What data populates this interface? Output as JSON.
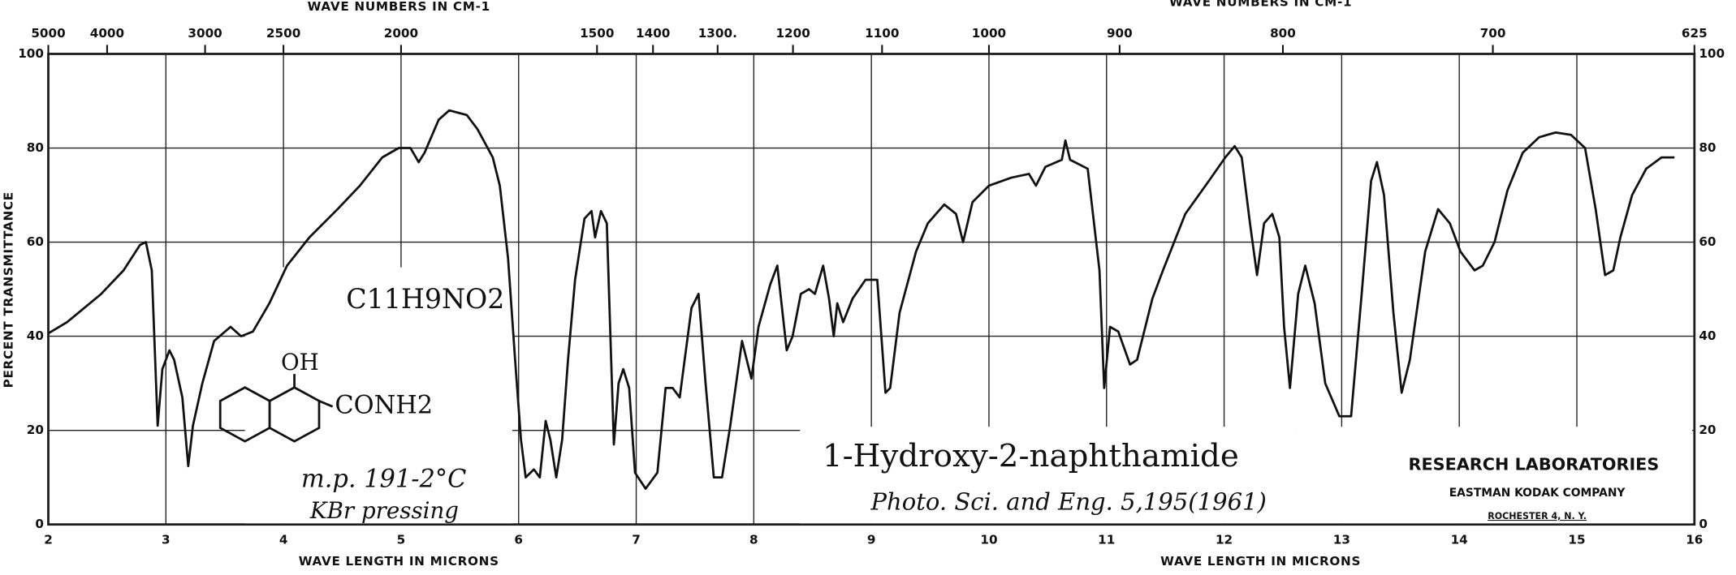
{
  "chart_data": {
    "type": "line",
    "x_label": "WAVE LENGTH IN MICRONS",
    "x2_label": "WAVE NUMBERS IN CM-1",
    "y_label": "PERCENT TRANSMITTANCE",
    "xlim": [
      2,
      16
    ],
    "xticks": [
      2,
      3,
      4,
      5,
      6,
      7,
      8,
      9,
      10,
      11,
      12,
      13,
      14,
      15,
      16
    ],
    "x2ticks": [
      5000,
      4000,
      3000,
      2500,
      2000,
      1500,
      1400,
      {
        "value": 1300,
        "label": "1300."
      },
      1200,
      1100,
      1000,
      900,
      800,
      700,
      625
    ],
    "ylim": [
      0,
      100
    ],
    "yticks": [
      0,
      20,
      40,
      60,
      80,
      100
    ],
    "grid": true,
    "color": "#111111",
    "x": [
      2.0,
      2.16,
      2.45,
      2.64,
      2.78,
      2.83,
      2.88,
      2.93,
      2.97,
      3.03,
      3.07,
      3.14,
      3.19,
      3.23,
      3.31,
      3.41,
      3.55,
      3.64,
      3.74,
      3.88,
      4.03,
      4.22,
      4.46,
      4.65,
      4.84,
      4.98,
      5.08,
      5.15,
      5.2,
      5.32,
      5.41,
      5.56,
      5.65,
      5.78,
      5.84,
      5.91,
      5.97,
      6.02,
      6.06,
      6.13,
      6.18,
      6.23,
      6.27,
      6.32,
      6.37,
      6.42,
      6.48,
      6.56,
      6.62,
      6.65,
      6.7,
      6.75,
      6.81,
      6.85,
      6.89,
      6.94,
      6.99,
      7.08,
      7.18,
      7.25,
      7.31,
      7.37,
      7.47,
      7.53,
      7.59,
      7.66,
      7.73,
      7.8,
      7.9,
      7.98,
      8.04,
      8.14,
      8.2,
      8.28,
      8.33,
      8.4,
      8.47,
      8.52,
      8.59,
      8.64,
      8.68,
      8.71,
      8.76,
      8.84,
      8.95,
      9.05,
      9.12,
      9.16,
      9.24,
      9.38,
      9.48,
      9.62,
      9.72,
      9.78,
      9.86,
      10.0,
      10.19,
      10.34,
      10.4,
      10.48,
      10.62,
      10.65,
      10.69,
      10.84,
      10.94,
      10.98,
      11.03,
      11.1,
      11.2,
      11.26,
      11.39,
      11.48,
      11.67,
      11.87,
      12.01,
      12.09,
      12.15,
      12.22,
      12.28,
      12.34,
      12.41,
      12.47,
      12.51,
      12.56,
      12.63,
      12.69,
      12.77,
      12.86,
      12.98,
      13.08,
      13.17,
      13.25,
      13.3,
      13.36,
      13.44,
      13.51,
      13.58,
      13.71,
      13.82,
      13.92,
      14.01,
      14.13,
      14.2,
      14.3,
      14.41,
      14.54,
      14.68,
      14.82,
      14.95,
      15.07,
      15.16,
      15.24,
      15.31,
      15.37,
      15.47,
      15.59,
      15.72,
      15.83
    ],
    "values": [
      40.6,
      43,
      49,
      54,
      59.4,
      60,
      54,
      21,
      33,
      37,
      35,
      27,
      12.4,
      21,
      30,
      39,
      42,
      40,
      41,
      47,
      55,
      61,
      67,
      72,
      78,
      80,
      80,
      77,
      79,
      86,
      88,
      87,
      84,
      78,
      72,
      56.6,
      35,
      18,
      10,
      11.7,
      10,
      22,
      18,
      10,
      18,
      35,
      52,
      65,
      66.6,
      61,
      66.6,
      64,
      17,
      30,
      33,
      29,
      11,
      7.6,
      11,
      29,
      29,
      27,
      46,
      49,
      30,
      10,
      10,
      21,
      39,
      31,
      42,
      51,
      55,
      37,
      40,
      49,
      50,
      49,
      55,
      48,
      40,
      47,
      43,
      48,
      52,
      52,
      28,
      29,
      45,
      58,
      64,
      68,
      66,
      60,
      68.5,
      72,
      73.7,
      74.5,
      72,
      76,
      77.5,
      81.6,
      77.5,
      75.6,
      54,
      29,
      42,
      41,
      34,
      35,
      48,
      54,
      66,
      73,
      78,
      80.4,
      78,
      64,
      53,
      64,
      66,
      61,
      42,
      29,
      49,
      55,
      47,
      30,
      23,
      23,
      49,
      73,
      77,
      70,
      45,
      28,
      35,
      58,
      67,
      64,
      58,
      54,
      55,
      60,
      71,
      79,
      82.3,
      83.3,
      82.8,
      80,
      67,
      53,
      54,
      61,
      70,
      75.6,
      78,
      78
    ],
    "annotations": [
      "C11H9NO2",
      "OH",
      "CONH2",
      "m.p. 191-2°C",
      "KBr pressing",
      "1-Hydroxy-2-naphthamide",
      "Photo. Sci. and Eng. 5,195(1961)",
      "RESEARCH LABORATORIES",
      "EASTMAN KODAK COMPANY",
      "ROCHESTER 4, N. Y."
    ]
  }
}
